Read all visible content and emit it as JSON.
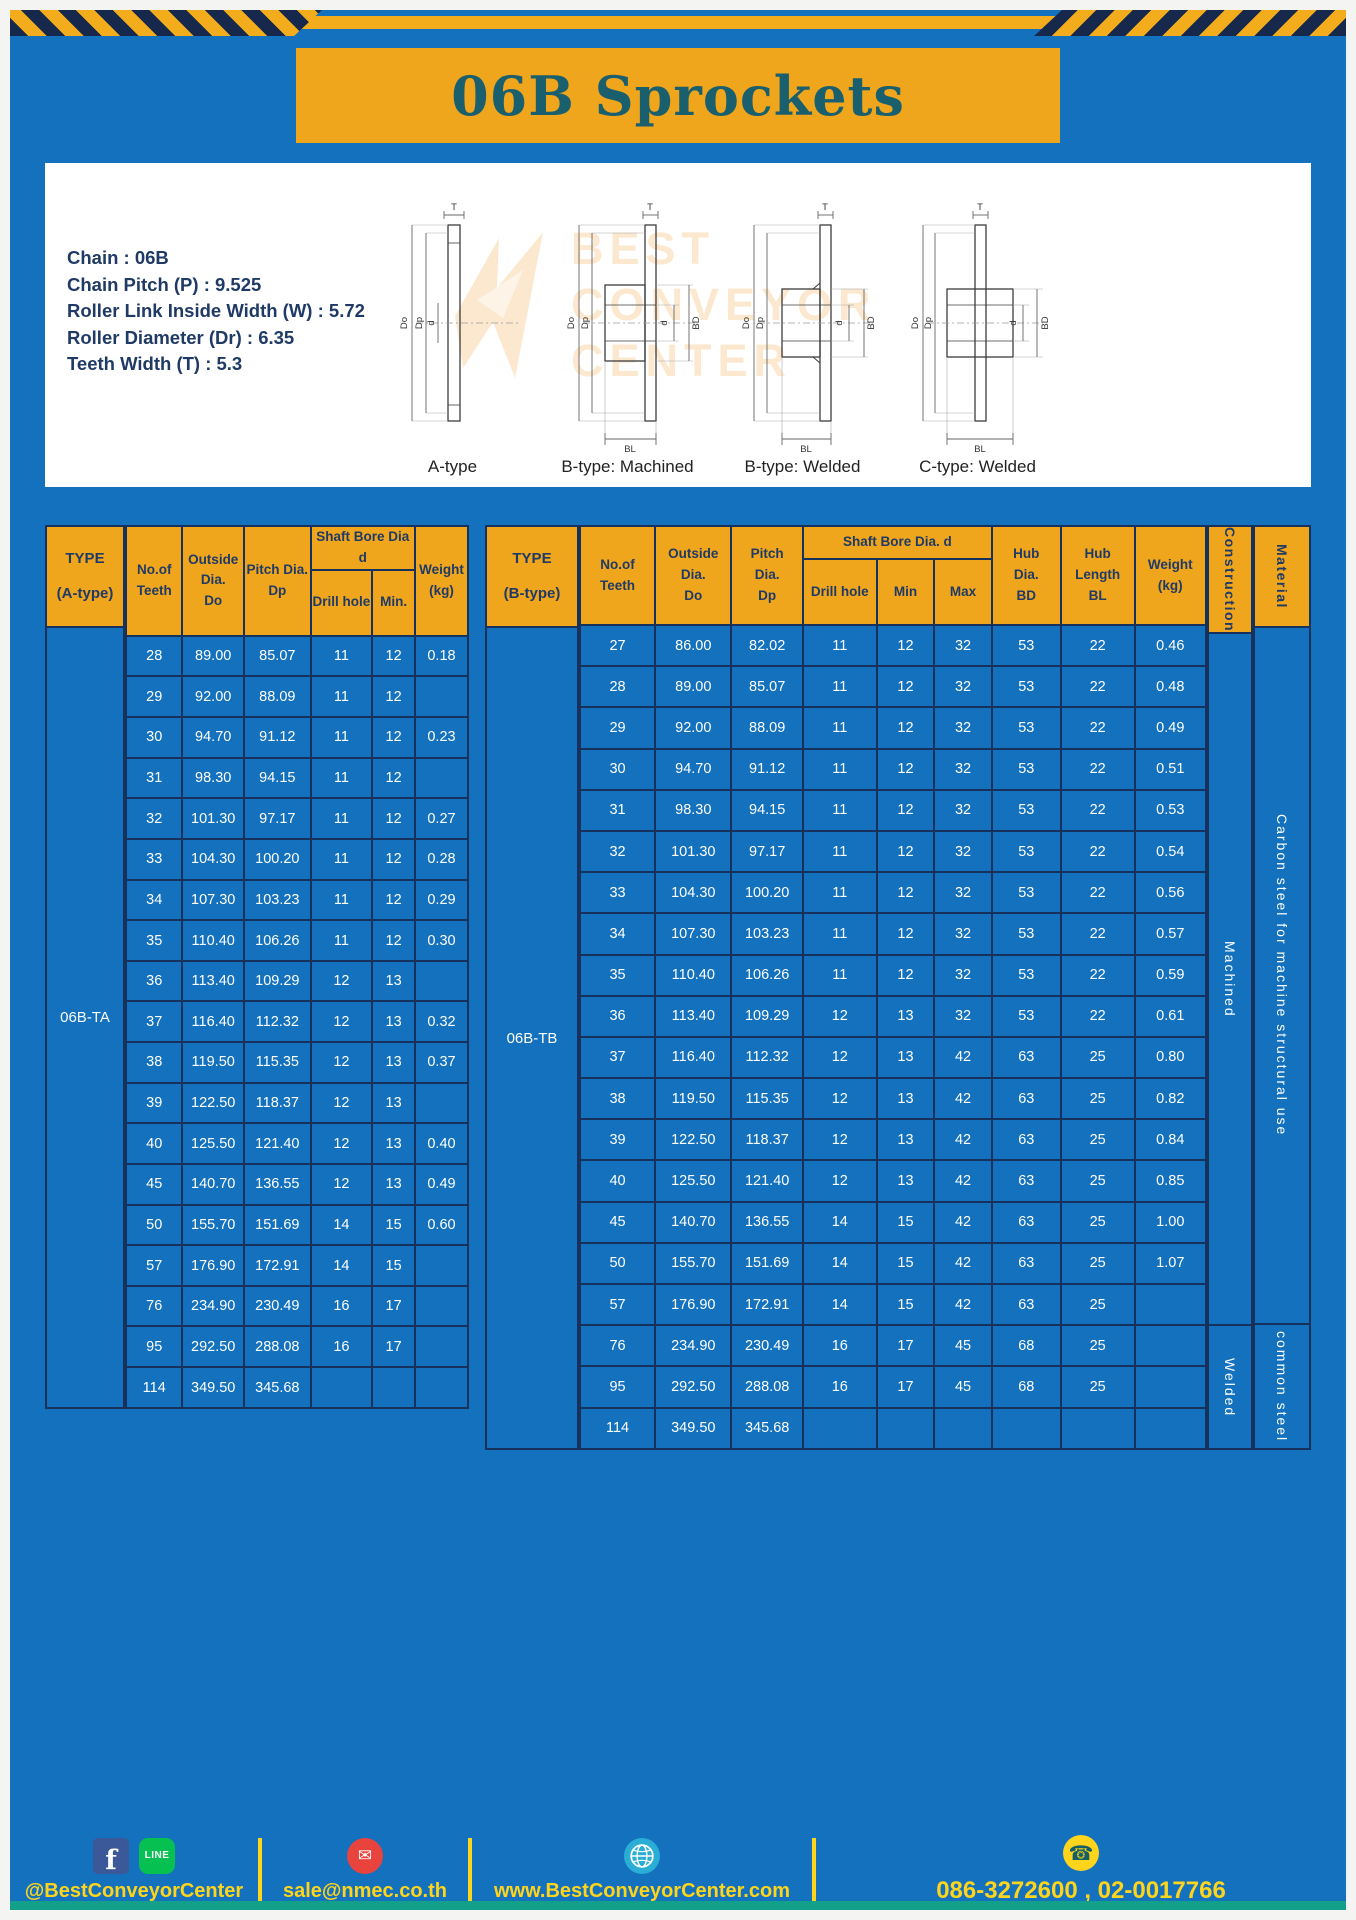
{
  "banner": {
    "title": "06B Sprockets"
  },
  "specs": {
    "lines": [
      "Chain : 06B",
      "Chain Pitch (P) : 9.525",
      "Roller Link Inside Width (W) : 5.72",
      "Roller Diameter (Dr) : 6.35",
      "Teeth Width (T) : 5.3"
    ],
    "figures": [
      {
        "label": "A-type"
      },
      {
        "label": "B-type: Machined"
      },
      {
        "label": "B-type: Welded"
      },
      {
        "label": "C-type: Welded"
      }
    ],
    "watermark": [
      "BEST",
      "CONVEYOR",
      "CENTER"
    ]
  },
  "dims": {
    "T": "T",
    "Do": "Do",
    "Dp": "Dp",
    "d": "d",
    "BD": "BD",
    "BL": "BL"
  },
  "table_a": {
    "headers": {
      "type": [
        "TYPE",
        "(A-type)"
      ],
      "teeth": [
        "No.of",
        "Teeth"
      ],
      "outside": [
        "Outside",
        "Dia.",
        "Do"
      ],
      "pitch": [
        "Pitch Dia.",
        "Dp"
      ],
      "shaft_bore": "Shaft Bore Dia d",
      "drill": "Drill hole",
      "min": "Min.",
      "weight": [
        "Weight",
        "(kg)"
      ]
    },
    "type_value": "06B-TA",
    "rows": [
      [
        "28",
        "89.00",
        "85.07",
        "11",
        "12",
        "0.18"
      ],
      [
        "29",
        "92.00",
        "88.09",
        "11",
        "12",
        ""
      ],
      [
        "30",
        "94.70",
        "91.12",
        "11",
        "12",
        "0.23"
      ],
      [
        "31",
        "98.30",
        "94.15",
        "11",
        "12",
        ""
      ],
      [
        "32",
        "101.30",
        "97.17",
        "11",
        "12",
        "0.27"
      ],
      [
        "33",
        "104.30",
        "100.20",
        "11",
        "12",
        "0.28"
      ],
      [
        "34",
        "107.30",
        "103.23",
        "11",
        "12",
        "0.29"
      ],
      [
        "35",
        "110.40",
        "106.26",
        "11",
        "12",
        "0.30"
      ],
      [
        "36",
        "113.40",
        "109.29",
        "12",
        "13",
        ""
      ],
      [
        "37",
        "116.40",
        "112.32",
        "12",
        "13",
        "0.32"
      ],
      [
        "38",
        "119.50",
        "115.35",
        "12",
        "13",
        "0.37"
      ],
      [
        "39",
        "122.50",
        "118.37",
        "12",
        "13",
        ""
      ],
      [
        "40",
        "125.50",
        "121.40",
        "12",
        "13",
        "0.40"
      ],
      [
        "45",
        "140.70",
        "136.55",
        "12",
        "13",
        "0.49"
      ],
      [
        "50",
        "155.70",
        "151.69",
        "14",
        "15",
        "0.60"
      ],
      [
        "57",
        "176.90",
        "172.91",
        "14",
        "15",
        ""
      ],
      [
        "76",
        "234.90",
        "230.49",
        "16",
        "17",
        ""
      ],
      [
        "95",
        "292.50",
        "288.08",
        "16",
        "17",
        ""
      ],
      [
        "114",
        "349.50",
        "345.68",
        "",
        "",
        ""
      ]
    ]
  },
  "table_b": {
    "headers": {
      "type": [
        "TYPE",
        "(B-type)"
      ],
      "teeth": [
        "No.of",
        "Teeth"
      ],
      "outside": [
        "Outside",
        "Dia.",
        "Do"
      ],
      "pitch": [
        "Pitch",
        "Dia.",
        "Dp"
      ],
      "shaft_bore": "Shaft Bore Dia. d",
      "drill": "Drill hole",
      "min": "Min",
      "max": "Max",
      "hub_dia": [
        "Hub",
        "Dia.",
        "BD"
      ],
      "hub_len": [
        "Hub",
        "Length",
        "BL"
      ],
      "weight": [
        "Weight",
        "(kg)"
      ],
      "construction": "Construction",
      "material": "Material"
    },
    "type_value": "06B-TB",
    "rows": [
      [
        "27",
        "86.00",
        "82.02",
        "11",
        "12",
        "32",
        "53",
        "22",
        "0.46"
      ],
      [
        "28",
        "89.00",
        "85.07",
        "11",
        "12",
        "32",
        "53",
        "22",
        "0.48"
      ],
      [
        "29",
        "92.00",
        "88.09",
        "11",
        "12",
        "32",
        "53",
        "22",
        "0.49"
      ],
      [
        "30",
        "94.70",
        "91.12",
        "11",
        "12",
        "32",
        "53",
        "22",
        "0.51"
      ],
      [
        "31",
        "98.30",
        "94.15",
        "11",
        "12",
        "32",
        "53",
        "22",
        "0.53"
      ],
      [
        "32",
        "101.30",
        "97.17",
        "11",
        "12",
        "32",
        "53",
        "22",
        "0.54"
      ],
      [
        "33",
        "104.30",
        "100.20",
        "11",
        "12",
        "32",
        "53",
        "22",
        "0.56"
      ],
      [
        "34",
        "107.30",
        "103.23",
        "11",
        "12",
        "32",
        "53",
        "22",
        "0.57"
      ],
      [
        "35",
        "110.40",
        "106.26",
        "11",
        "12",
        "32",
        "53",
        "22",
        "0.59"
      ],
      [
        "36",
        "113.40",
        "109.29",
        "12",
        "13",
        "32",
        "53",
        "22",
        "0.61"
      ],
      [
        "37",
        "116.40",
        "112.32",
        "12",
        "13",
        "42",
        "63",
        "25",
        "0.80"
      ],
      [
        "38",
        "119.50",
        "115.35",
        "12",
        "13",
        "42",
        "63",
        "25",
        "0.82"
      ],
      [
        "39",
        "122.50",
        "118.37",
        "12",
        "13",
        "42",
        "63",
        "25",
        "0.84"
      ],
      [
        "40",
        "125.50",
        "121.40",
        "12",
        "13",
        "42",
        "63",
        "25",
        "0.85"
      ],
      [
        "45",
        "140.70",
        "136.55",
        "14",
        "15",
        "42",
        "63",
        "25",
        "1.00"
      ],
      [
        "50",
        "155.70",
        "151.69",
        "14",
        "15",
        "42",
        "63",
        "25",
        "1.07"
      ],
      [
        "57",
        "176.90",
        "172.91",
        "14",
        "15",
        "42",
        "63",
        "25",
        ""
      ],
      [
        "76",
        "234.90",
        "230.49",
        "16",
        "17",
        "45",
        "68",
        "25",
        ""
      ],
      [
        "95",
        "292.50",
        "288.08",
        "16",
        "17",
        "45",
        "68",
        "25",
        ""
      ],
      [
        "114",
        "349.50",
        "345.68",
        "",
        "",
        "",
        "",
        "",
        ""
      ]
    ],
    "construction_groups": [
      {
        "label": "Machined",
        "rows": 17
      },
      {
        "label": "Welded",
        "rows": 3
      }
    ],
    "material_groups": [
      {
        "label": "Carbon steel for machine structural use",
        "rows": 17
      },
      {
        "label": "common steel",
        "rows": 3
      }
    ]
  },
  "footer": {
    "sections": [
      {
        "text": "@BestConveyorCenter"
      },
      {
        "text": "sale@nmec.co.th"
      },
      {
        "text": "www.BestConveyorCenter.com"
      },
      {
        "text": "086-3272600 , 02-0017766"
      }
    ],
    "facebook_glyph": "f",
    "line_glyph": "LINE",
    "mail_glyph": "✉",
    "phone_glyph": "☎"
  },
  "colors": {
    "page_blue": "#1371BD",
    "accent_yellow": "#EFA51C",
    "border_navy": "#16325C",
    "title_teal": "#1A5F6E",
    "footer_yellow": "#FFD41C",
    "bottom_teal": "#12A08B",
    "panel_white": "#FFFFFF"
  }
}
